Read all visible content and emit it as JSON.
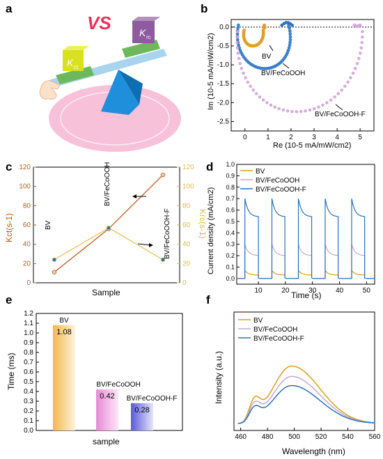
{
  "panel_labels": {
    "a": "a",
    "b": "b",
    "c": "c",
    "d": "d",
    "e": "e",
    "f": "f"
  },
  "illustration": {
    "vs_text": "VS",
    "kct_label": "K",
    "kct_sub": "ct",
    "krc_label": "K",
    "krc_sub": "rc",
    "colors": {
      "left_cube": "#d9e21a",
      "right_cube": "#8c5a9c",
      "fulcrum": "#1a8ed8",
      "base": "#f2a7c8",
      "beam": "#8fc6e6",
      "trays": "#7cc36a",
      "vs": "#e8315a"
    }
  },
  "chart_data": [
    {
      "panel": "b",
      "type": "scatter",
      "xlabel": "Re (10-5 mA/mW/cm2)",
      "ylabel": "Im (10-5 mA/mW/cm2)",
      "xlim": [
        -0.6,
        5.6
      ],
      "ylim": [
        -2.75,
        0.2
      ],
      "xticks": [
        "0",
        "1",
        "2",
        "3",
        "4",
        "5"
      ],
      "yticks": [
        "0.0",
        "-0.5",
        "-1.0",
        "-1.5",
        "-2.0",
        "-2.5"
      ],
      "series": [
        {
          "name": "BV",
          "color": "#e0a030",
          "center": [
            0.37,
            -0.08
          ],
          "rx": 0.43,
          "ry": 0.42,
          "arc_deg": [
            200,
            -12
          ],
          "tail": [
            0.82,
            -0.02,
            0.86,
            0.05
          ]
        },
        {
          "name": "BV/FeCoOOH",
          "color": "#2e74c4",
          "center": [
            0.82,
            0.05
          ],
          "rx": 1.15,
          "ry": 1.15,
          "arc_deg": [
            196,
            -20
          ],
          "tail": [
            1.6,
            0.05,
            2.05,
            0.12
          ]
        },
        {
          "name": "BV/FeCoOOH-F",
          "color": "#d6a8dc",
          "center": [
            2.38,
            -0.12
          ],
          "rx": 2.72,
          "ry": 2.12,
          "arc_deg": [
            187,
            -1
          ],
          "tail": [
            4.75,
            0.05,
            5.0,
            0.02
          ]
        }
      ],
      "annotations": [
        "BV",
        "BV/FeCoOOH",
        "BV/FeCoOOH-F"
      ]
    },
    {
      "panel": "c",
      "type": "line",
      "xlabel": "Sample",
      "ylabel_left": "Kct(s-1)",
      "ylabel_right": "Krc(s-1)",
      "ylim": [
        0,
        120
      ],
      "yticks": [
        "0",
        "20",
        "40",
        "60",
        "80",
        "100",
        "120"
      ],
      "categories": [
        "BV",
        "BV/FeCoOOH",
        "BV/FeCoOOH-F"
      ],
      "series": [
        {
          "name": "Kct",
          "color": "#b85c20",
          "axis": "left",
          "values": [
            11,
            56,
            112
          ]
        },
        {
          "name": "Krc",
          "color": "#e8c060",
          "axis": "right",
          "values": [
            24,
            57,
            24
          ]
        }
      ]
    },
    {
      "panel": "d",
      "type": "line",
      "xlabel": "Time (s)",
      "ylabel": "Current density (mA/cm2)",
      "xlim": [
        2,
        53
      ],
      "ylim": [
        -0.05,
        1.0
      ],
      "xticks": [
        "10",
        "20",
        "30",
        "40",
        "50"
      ],
      "yticks": [
        "0.0",
        "0.1",
        "0.2",
        "0.3",
        "0.4",
        "0.5",
        "0.6",
        "0.7",
        "0.8",
        "0.9",
        "1.0"
      ],
      "on_off_periods": [
        [
          5,
          10
        ],
        [
          15,
          19.8
        ],
        [
          24.8,
          29.7
        ],
        [
          34.7,
          39.5
        ],
        [
          44.5,
          49.3
        ]
      ],
      "series": [
        {
          "name": "BV",
          "color": "#d4a020",
          "peak": 0.07,
          "plateau": 0.03
        },
        {
          "name": "BV/FeCoOOH",
          "color": "#c4a8cc",
          "peak": 0.3,
          "plateau": 0.2
        },
        {
          "name": "BV/FeCoOOH-F",
          "color": "#2a70b8",
          "peak": 0.7,
          "plateau": 0.54
        }
      ]
    },
    {
      "panel": "e",
      "type": "bar",
      "xlabel": "sample",
      "ylabel": "Time (ms)",
      "ylim": [
        0,
        1.2
      ],
      "yticks": [
        "0.0",
        "0.1",
        "0.2",
        "0.3",
        "0.4",
        "0.5",
        "0.6",
        "0.7",
        "0.8",
        "0.9",
        "1.0",
        "1.1",
        "1.2"
      ],
      "categories": [
        "BV",
        "BV/FeCoOOH",
        "BV/FeCoOOH-F"
      ],
      "values": [
        1.08,
        0.42,
        0.28
      ],
      "value_labels": [
        "1.08",
        "0.42",
        "0.28"
      ],
      "colors": [
        "#f2b94a",
        "#e88ad6",
        "#5a5ad8"
      ]
    },
    {
      "panel": "f",
      "type": "line",
      "xlabel": "Wavelength (nm)",
      "ylabel": "Intensity (a.u.)",
      "xlim": [
        455,
        560
      ],
      "xticks": [
        "460",
        "480",
        "500",
        "520",
        "540",
        "560"
      ],
      "series": [
        {
          "name": "BV",
          "color": "#d4a020",
          "peak": 1.0
        },
        {
          "name": "BV/FeCoOOH",
          "color": "#c4a8cc",
          "peak": 0.82
        },
        {
          "name": "BV/FeCoOOH-F",
          "color": "#2a70b8",
          "peak": 0.66
        }
      ]
    }
  ]
}
